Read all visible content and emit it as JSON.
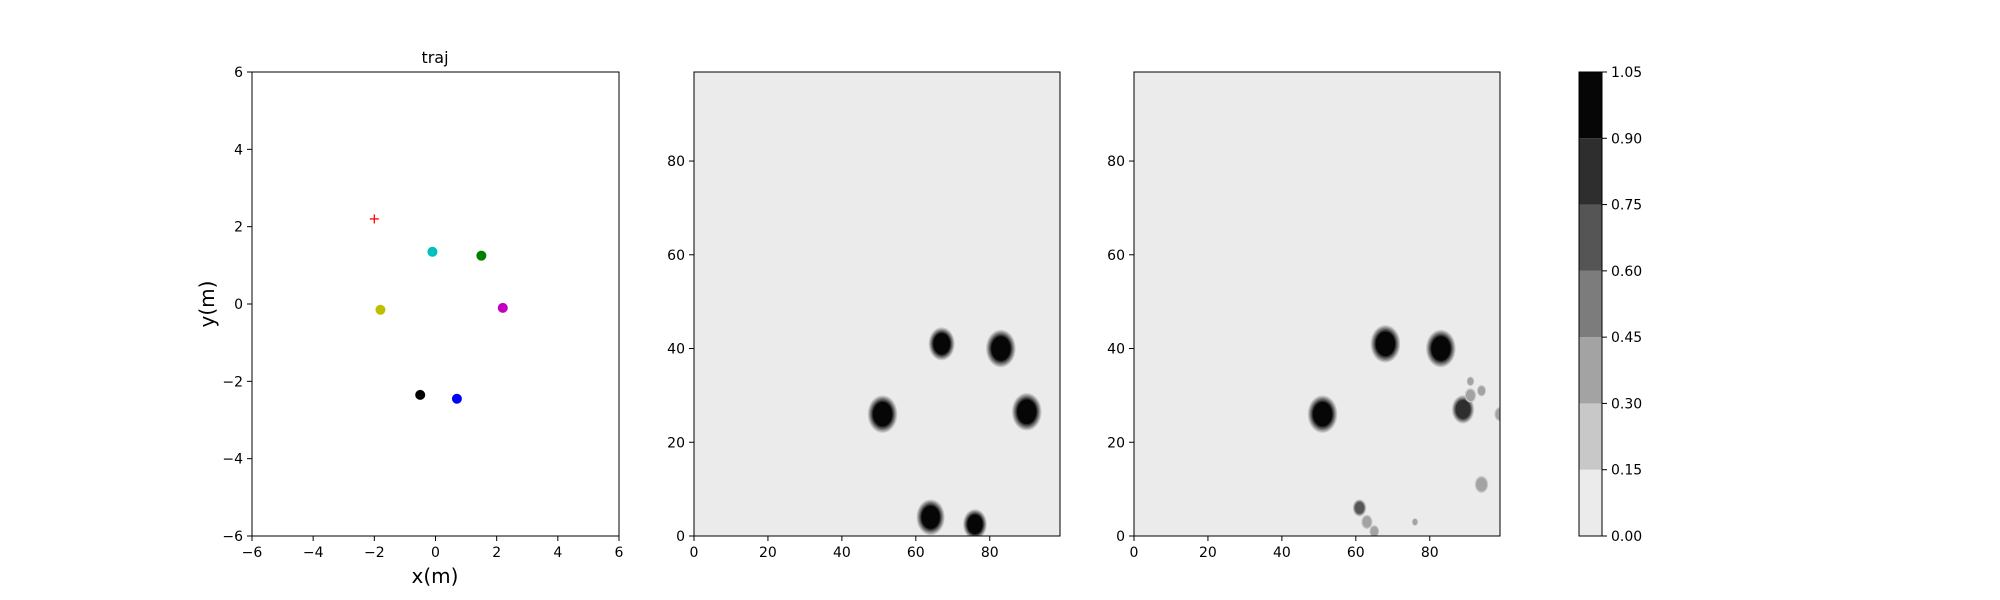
{
  "chart_data": [
    {
      "type": "scatter",
      "title": "traj",
      "xlabel": "x(m)",
      "ylabel": "y(m)",
      "xlim": [
        -6,
        6
      ],
      "ylim": [
        -6,
        6
      ],
      "xticks": [
        "−6",
        "−4",
        "−2",
        "0",
        "2",
        "4",
        "6"
      ],
      "yticks": [
        "−6",
        "−4",
        "−2",
        "0",
        "2",
        "4",
        "6"
      ],
      "grid": false,
      "points": [
        {
          "x": -2.0,
          "y": 2.2,
          "color": "#ff0000",
          "marker": "plus"
        },
        {
          "x": -0.1,
          "y": 1.35,
          "color": "#00bfbf",
          "marker": "circle"
        },
        {
          "x": 1.5,
          "y": 1.25,
          "color": "#008000",
          "marker": "circle"
        },
        {
          "x": -1.8,
          "y": -0.15,
          "color": "#bfbf00",
          "marker": "circle"
        },
        {
          "x": 2.2,
          "y": -0.1,
          "color": "#bf00bf",
          "marker": "circle"
        },
        {
          "x": -0.5,
          "y": -2.35,
          "color": "#000000",
          "marker": "circle"
        },
        {
          "x": 0.7,
          "y": -2.45,
          "color": "#0000ff",
          "marker": "circle"
        }
      ]
    },
    {
      "type": "heatmap",
      "xlim": [
        0,
        99
      ],
      "ylim": [
        0,
        99
      ],
      "xticks": [
        "0",
        "20",
        "40",
        "60",
        "80"
      ],
      "yticks": [
        "0",
        "20",
        "40",
        "60",
        "80"
      ],
      "background_level": 0.0,
      "blobs": [
        {
          "x": 67,
          "y": 41,
          "r": 3.5,
          "level": 1.0
        },
        {
          "x": 83,
          "y": 40,
          "r": 4,
          "level": 1.0
        },
        {
          "x": 51,
          "y": 26,
          "r": 4,
          "level": 1.0
        },
        {
          "x": 90,
          "y": 26.5,
          "r": 4,
          "level": 1.0
        },
        {
          "x": 64,
          "y": 4,
          "r": 3.8,
          "level": 1.0
        },
        {
          "x": 76,
          "y": 2.5,
          "r": 3.2,
          "level": 1.0
        }
      ]
    },
    {
      "type": "heatmap",
      "xlim": [
        0,
        99
      ],
      "ylim": [
        0,
        99
      ],
      "xticks": [
        "0",
        "20",
        "40",
        "60",
        "80"
      ],
      "yticks": [
        "0",
        "20",
        "40",
        "60",
        "80"
      ],
      "background_level": 0.0,
      "blobs": [
        {
          "x": 68,
          "y": 41,
          "r": 4,
          "level": 1.0
        },
        {
          "x": 83,
          "y": 40,
          "r": 4,
          "level": 1.0
        },
        {
          "x": 51,
          "y": 26,
          "r": 4,
          "level": 1.0
        },
        {
          "x": 89,
          "y": 27,
          "r": 3,
          "level": 0.8
        },
        {
          "x": 91,
          "y": 30,
          "r": 1.5,
          "level": 0.3
        },
        {
          "x": 94,
          "y": 31,
          "r": 1.2,
          "level": 0.3
        },
        {
          "x": 91,
          "y": 33,
          "r": 1.0,
          "level": 0.3
        },
        {
          "x": 99,
          "y": 26,
          "r": 1.5,
          "level": 0.4
        },
        {
          "x": 94,
          "y": 11,
          "r": 1.8,
          "level": 0.4
        },
        {
          "x": 61,
          "y": 6,
          "r": 1.8,
          "level": 0.6
        },
        {
          "x": 63,
          "y": 3,
          "r": 1.5,
          "level": 0.4
        },
        {
          "x": 65,
          "y": 1,
          "r": 1.3,
          "level": 0.35
        },
        {
          "x": 76,
          "y": 3,
          "r": 0.8,
          "level": 0.3
        }
      ]
    }
  ],
  "colorbar": {
    "levels": [
      "0.00",
      "0.15",
      "0.30",
      "0.45",
      "0.60",
      "0.75",
      "0.90",
      "1.05"
    ],
    "colors": [
      "#ebebeb",
      "#c8c8c8",
      "#a3a3a3",
      "#7c7c7c",
      "#555555",
      "#2e2e2e",
      "#060606"
    ]
  }
}
